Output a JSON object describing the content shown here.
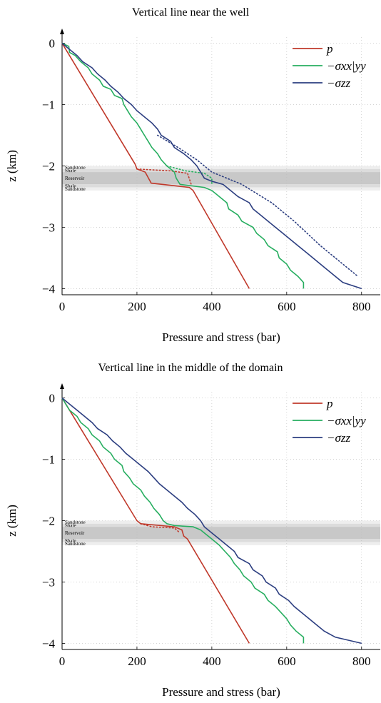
{
  "chart_data": [
    {
      "type": "line",
      "title": "Vertical line near the well",
      "xlabel": "Pressure and stress (bar)",
      "ylabel": "z (km)",
      "xlim": [
        0,
        850
      ],
      "ylim": [
        -4.1,
        0.1
      ],
      "xticks": [
        0,
        200,
        400,
        600,
        800
      ],
      "yticks": [
        0,
        -1,
        -2,
        -3,
        -4
      ],
      "xtick_labels": [
        "0",
        "200",
        "400",
        "600",
        "800"
      ],
      "ytick_labels": [
        "0",
        "−1",
        "−2",
        "−3",
        "−4"
      ],
      "grid": true,
      "legend_position": "top-right",
      "layers": [
        {
          "name": "Sandstone",
          "z_top": -2.0,
          "z_bottom": -2.05
        },
        {
          "name": "Shale",
          "z_top": -2.05,
          "z_bottom": -2.1
        },
        {
          "name": "Reservoir",
          "z_top": -2.1,
          "z_bottom": -2.3
        },
        {
          "name": "Shale",
          "z_top": -2.3,
          "z_bottom": -2.35
        },
        {
          "name": "Sandstone",
          "z_top": -2.35,
          "z_bottom": -2.4
        }
      ],
      "series": [
        {
          "name": "p",
          "color": "#c0392b",
          "solid": [
            [
              0,
              0
            ],
            [
              195,
              -1.97
            ],
            [
              200,
              -2.05
            ],
            [
              222,
              -2.1
            ],
            [
              238,
              -2.28
            ],
            [
              340,
              -2.35
            ],
            [
              350,
              -2.4
            ],
            [
              500,
              -4.0
            ]
          ],
          "dotted": [
            [
              200,
              -2.05
            ],
            [
              290,
              -2.08
            ],
            [
              335,
              -2.12
            ],
            [
              345,
              -2.3
            ]
          ]
        },
        {
          "name": "−σxx|yy",
          "color": "#27ae60",
          "solid": [
            [
              0,
              0
            ],
            [
              18,
              -0.05
            ],
            [
              20,
              -0.15
            ],
            [
              35,
              -0.2
            ],
            [
              50,
              -0.3
            ],
            [
              70,
              -0.4
            ],
            [
              80,
              -0.5
            ],
            [
              100,
              -0.6
            ],
            [
              110,
              -0.7
            ],
            [
              130,
              -0.75
            ],
            [
              140,
              -0.85
            ],
            [
              160,
              -0.9
            ],
            [
              165,
              -1.0
            ],
            [
              175,
              -1.1
            ],
            [
              185,
              -1.2
            ],
            [
              200,
              -1.3
            ],
            [
              210,
              -1.4
            ],
            [
              220,
              -1.5
            ],
            [
              230,
              -1.6
            ],
            [
              240,
              -1.7
            ],
            [
              255,
              -1.8
            ],
            [
              265,
              -1.9
            ],
            [
              280,
              -2.0
            ],
            [
              290,
              -2.05
            ],
            [
              300,
              -2.1
            ],
            [
              305,
              -2.2
            ],
            [
              315,
              -2.3
            ],
            [
              380,
              -2.35
            ],
            [
              400,
              -2.4
            ],
            [
              420,
              -2.5
            ],
            [
              440,
              -2.6
            ],
            [
              445,
              -2.7
            ],
            [
              470,
              -2.8
            ],
            [
              480,
              -2.9
            ],
            [
              510,
              -3.0
            ],
            [
              520,
              -3.1
            ],
            [
              540,
              -3.2
            ],
            [
              550,
              -3.3
            ],
            [
              575,
              -3.4
            ],
            [
              580,
              -3.5
            ],
            [
              600,
              -3.6
            ],
            [
              610,
              -3.7
            ],
            [
              630,
              -3.8
            ],
            [
              645,
              -3.9
            ],
            [
              645,
              -4.0
            ]
          ],
          "dotted": [
            [
              280,
              -2.0
            ],
            [
              330,
              -2.08
            ],
            [
              380,
              -2.12
            ],
            [
              400,
              -2.2
            ],
            [
              400,
              -2.3
            ]
          ]
        },
        {
          "name": "−σzz",
          "color": "#2c3e80",
          "solid": [
            [
              0,
              0
            ],
            [
              20,
              -0.1
            ],
            [
              40,
              -0.2
            ],
            [
              55,
              -0.3
            ],
            [
              80,
              -0.4
            ],
            [
              95,
              -0.5
            ],
            [
              115,
              -0.6
            ],
            [
              130,
              -0.7
            ],
            [
              150,
              -0.8
            ],
            [
              165,
              -0.9
            ],
            [
              185,
              -1.0
            ],
            [
              200,
              -1.1
            ],
            [
              220,
              -1.2
            ],
            [
              240,
              -1.3
            ],
            [
              255,
              -1.4
            ],
            [
              265,
              -1.5
            ],
            [
              290,
              -1.6
            ],
            [
              300,
              -1.7
            ],
            [
              325,
              -1.8
            ],
            [
              345,
              -1.9
            ],
            [
              360,
              -2.0
            ],
            [
              370,
              -2.1
            ],
            [
              380,
              -2.2
            ],
            [
              400,
              -2.25
            ],
            [
              430,
              -2.3
            ],
            [
              450,
              -2.4
            ],
            [
              470,
              -2.5
            ],
            [
              500,
              -2.6
            ],
            [
              510,
              -2.7
            ],
            [
              530,
              -2.8
            ],
            [
              550,
              -2.9
            ],
            [
              570,
              -3.0
            ],
            [
              590,
              -3.1
            ],
            [
              610,
              -3.2
            ],
            [
              630,
              -3.3
            ],
            [
              650,
              -3.4
            ],
            [
              670,
              -3.5
            ],
            [
              690,
              -3.6
            ],
            [
              710,
              -3.7
            ],
            [
              730,
              -3.8
            ],
            [
              750,
              -3.9
            ],
            [
              800,
              -4.0
            ]
          ],
          "dotted": [
            [
              255,
              -1.5
            ],
            [
              310,
              -1.7
            ],
            [
              360,
              -1.9
            ],
            [
              400,
              -2.1
            ],
            [
              480,
              -2.3
            ],
            [
              560,
              -2.6
            ],
            [
              620,
              -2.9
            ],
            [
              690,
              -3.3
            ],
            [
              790,
              -3.8
            ]
          ]
        }
      ]
    },
    {
      "type": "line",
      "title": "Vertical line in the middle of the domain",
      "xlabel": "Pressure and stress (bar)",
      "ylabel": "z (km)",
      "xlim": [
        0,
        850
      ],
      "ylim": [
        -4.1,
        0.1
      ],
      "xticks": [
        0,
        200,
        400,
        600,
        800
      ],
      "yticks": [
        0,
        -1,
        -2,
        -3,
        -4
      ],
      "xtick_labels": [
        "0",
        "200",
        "400",
        "600",
        "800"
      ],
      "ytick_labels": [
        "0",
        "−1",
        "−2",
        "−3",
        "−4"
      ],
      "grid": true,
      "legend_position": "top-right",
      "layers": [
        {
          "name": "Sandstone",
          "z_top": -2.0,
          "z_bottom": -2.05
        },
        {
          "name": "Shale",
          "z_top": -2.05,
          "z_bottom": -2.1
        },
        {
          "name": "Reservoir",
          "z_top": -2.1,
          "z_bottom": -2.3
        },
        {
          "name": "Shale",
          "z_top": -2.3,
          "z_bottom": -2.35
        },
        {
          "name": "Sandstone",
          "z_top": -2.35,
          "z_bottom": -2.4
        }
      ],
      "series": [
        {
          "name": "p",
          "color": "#c0392b",
          "solid": [
            [
              0,
              0
            ],
            [
              200,
              -2.0
            ],
            [
              210,
              -2.05
            ],
            [
              300,
              -2.1
            ],
            [
              320,
              -2.15
            ],
            [
              325,
              -2.25
            ],
            [
              335,
              -2.3
            ],
            [
              500,
              -4.0
            ]
          ],
          "dotted": [
            [
              210,
              -2.05
            ],
            [
              240,
              -2.1
            ],
            [
              300,
              -2.12
            ],
            [
              315,
              -2.2
            ]
          ]
        },
        {
          "name": "−σxx|yy",
          "color": "#27ae60",
          "solid": [
            [
              0,
              0
            ],
            [
              10,
              -0.1
            ],
            [
              20,
              -0.2
            ],
            [
              40,
              -0.3
            ],
            [
              50,
              -0.4
            ],
            [
              70,
              -0.5
            ],
            [
              80,
              -0.6
            ],
            [
              100,
              -0.7
            ],
            [
              110,
              -0.8
            ],
            [
              130,
              -0.9
            ],
            [
              140,
              -1.0
            ],
            [
              160,
              -1.1
            ],
            [
              165,
              -1.2
            ],
            [
              180,
              -1.3
            ],
            [
              190,
              -1.4
            ],
            [
              210,
              -1.5
            ],
            [
              220,
              -1.6
            ],
            [
              235,
              -1.7
            ],
            [
              245,
              -1.8
            ],
            [
              260,
              -1.9
            ],
            [
              270,
              -2.0
            ],
            [
              280,
              -2.05
            ],
            [
              300,
              -2.08
            ],
            [
              350,
              -2.1
            ],
            [
              370,
              -2.15
            ],
            [
              380,
              -2.2
            ],
            [
              400,
              -2.3
            ],
            [
              420,
              -2.4
            ],
            [
              435,
              -2.5
            ],
            [
              450,
              -2.6
            ],
            [
              460,
              -2.7
            ],
            [
              475,
              -2.8
            ],
            [
              485,
              -2.9
            ],
            [
              505,
              -3.0
            ],
            [
              515,
              -3.1
            ],
            [
              540,
              -3.2
            ],
            [
              550,
              -3.3
            ],
            [
              570,
              -3.4
            ],
            [
              585,
              -3.5
            ],
            [
              600,
              -3.6
            ],
            [
              610,
              -3.7
            ],
            [
              625,
              -3.8
            ],
            [
              645,
              -3.9
            ],
            [
              645,
              -4.0
            ]
          ],
          "dotted": []
        },
        {
          "name": "−σzz",
          "color": "#2c3e80",
          "solid": [
            [
              0,
              0
            ],
            [
              20,
              -0.1
            ],
            [
              40,
              -0.2
            ],
            [
              60,
              -0.3
            ],
            [
              80,
              -0.4
            ],
            [
              95,
              -0.5
            ],
            [
              120,
              -0.6
            ],
            [
              135,
              -0.7
            ],
            [
              155,
              -0.8
            ],
            [
              170,
              -0.9
            ],
            [
              190,
              -1.0
            ],
            [
              210,
              -1.1
            ],
            [
              230,
              -1.2
            ],
            [
              245,
              -1.3
            ],
            [
              260,
              -1.4
            ],
            [
              280,
              -1.5
            ],
            [
              300,
              -1.6
            ],
            [
              320,
              -1.7
            ],
            [
              335,
              -1.8
            ],
            [
              355,
              -1.9
            ],
            [
              370,
              -2.0
            ],
            [
              380,
              -2.1
            ],
            [
              400,
              -2.2
            ],
            [
              420,
              -2.3
            ],
            [
              440,
              -2.4
            ],
            [
              460,
              -2.5
            ],
            [
              470,
              -2.6
            ],
            [
              500,
              -2.7
            ],
            [
              510,
              -2.8
            ],
            [
              535,
              -2.9
            ],
            [
              545,
              -3.0
            ],
            [
              570,
              -3.1
            ],
            [
              580,
              -3.2
            ],
            [
              605,
              -3.3
            ],
            [
              620,
              -3.4
            ],
            [
              640,
              -3.5
            ],
            [
              660,
              -3.6
            ],
            [
              680,
              -3.7
            ],
            [
              700,
              -3.8
            ],
            [
              730,
              -3.9
            ],
            [
              800,
              -4.0
            ]
          ],
          "dotted": []
        }
      ]
    }
  ]
}
